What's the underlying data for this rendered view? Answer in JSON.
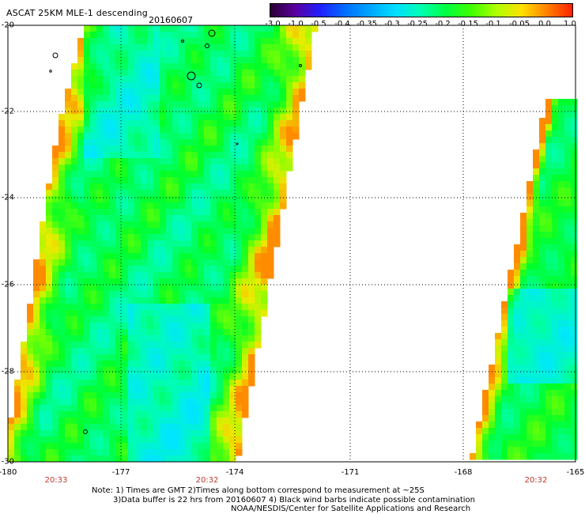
{
  "header": {
    "title": "ASCAT 25KM MLE-1 descending",
    "date": "20160607"
  },
  "colorbar": {
    "labels": [
      "-3.0",
      "-1.0",
      "-0.5",
      "-0.4",
      "-0.35",
      "-0.3",
      "-0.25",
      "-0.2",
      "-0.15",
      "-0.1",
      "-0.05",
      "0.0",
      "1.0"
    ],
    "colors": [
      "#2a0033",
      "#5a00a0",
      "#2020ff",
      "#0070ff",
      "#00a8ff",
      "#00e0ff",
      "#00ffb0",
      "#00ff40",
      "#40ff00",
      "#b0ff00",
      "#ffe000",
      "#ff8000",
      "#ff2000"
    ]
  },
  "map": {
    "lat_labels": [
      "-20",
      "-22",
      "-24",
      "-26",
      "-28",
      "-30"
    ],
    "lon_labels": [
      "-180",
      "-177",
      "-174",
      "-171",
      "-168",
      "-165"
    ],
    "lat_range": [
      -30,
      -20
    ],
    "lon_range": [
      -180,
      -165
    ],
    "times": [
      "20:33",
      "20:32",
      "20:32"
    ]
  },
  "notes": {
    "line1": "Note: 1) Times are GMT 2)Times along bottom correspond to measurement at ~25S",
    "line2": "3)Data buffer is 22 hrs from 20160607 4) Black wind barbs indicate possible contamination",
    "line3": "NOAA/NESDIS/Center for Satellite Applications and Research"
  }
}
